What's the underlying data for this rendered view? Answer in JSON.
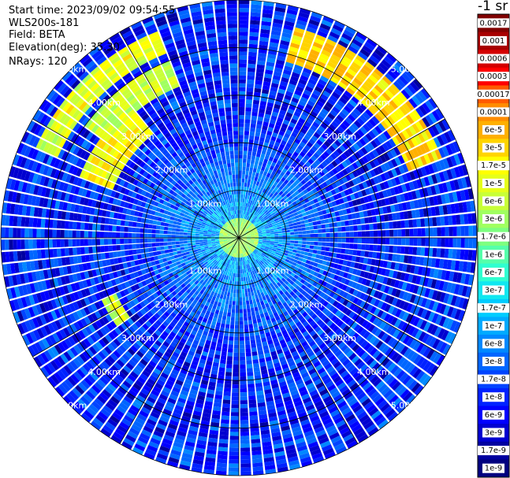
{
  "header": {
    "start_time": "Start time: 2023/09/02 09:54:55",
    "instrument": "WLS200s-181",
    "field": "Field: BETA",
    "elevation": "Elevation(deg): 35.30",
    "nrays": "NRays: 120"
  },
  "colorbar": {
    "title": "-1 sr",
    "ticks": [
      "0.0017",
      "0.001",
      "0.0006",
      "0.0003",
      "0.00017",
      "0.0001",
      "6e-5",
      "3e-5",
      "1.7e-5",
      "1e-5",
      "6e-6",
      "3e-6",
      "1.7e-6",
      "1e-6",
      "6e-7",
      "3e-7",
      "1.7e-7",
      "1e-7",
      "6e-8",
      "3e-8",
      "1.7e-8",
      "1e-8",
      "6e-9",
      "3e-9",
      "1.7e-9",
      "1e-9"
    ],
    "colors": [
      "#800000",
      "#a80000",
      "#d40000",
      "#ff0000",
      "#ff5a00",
      "#ff8c00",
      "#ffb000",
      "#ffd400",
      "#ffff00",
      "#e6ff1a",
      "#c8ff38",
      "#a0ff60",
      "#7dff80",
      "#55ffaa",
      "#30ffd0",
      "#10e8f0",
      "#00ccff",
      "#00aaff",
      "#0088ff",
      "#0066ff",
      "#0044ff",
      "#0022ff",
      "#0000ff",
      "#0000d0",
      "#0000a0",
      "#000080"
    ]
  },
  "chart_data": {
    "type": "heatmap",
    "projection": "polar PPI",
    "field": "BETA",
    "units": "sr-1",
    "elevation_deg": 35.3,
    "n_rays": 120,
    "range_unit": "km",
    "range_max_km": 5.0,
    "range_rings_km": [
      1.0,
      2.0,
      3.0,
      4.0,
      5.0
    ],
    "range_labels": [
      "1.00km",
      "2.00km",
      "3.00km",
      "4.00km",
      "5.00km"
    ],
    "spokes_deg": [
      0,
      30,
      60,
      90,
      120,
      150,
      180,
      210,
      240,
      270,
      300,
      330
    ],
    "near_field_km": [
      0,
      2.5
    ],
    "near_field_value": 1.7e-07,
    "background_value": 1e-08,
    "features": [
      {
        "range_km": [
          4.2,
          4.7
        ],
        "azimuth_deg": [
          295,
          340
        ],
        "value": 1e-05
      },
      {
        "range_km": [
          3.8,
          4.6
        ],
        "azimuth_deg": [
          15,
          70
        ],
        "value": 3e-05
      },
      {
        "range_km": [
          3.4,
          4.0
        ],
        "azimuth_deg": [
          305,
          340
        ],
        "value": 6e-06
      },
      {
        "range_km": [
          2.8,
          3.6
        ],
        "azimuth_deg": [
          290,
          320
        ],
        "value": 1.7e-05
      },
      {
        "range_km": [
          2.8,
          3.2
        ],
        "azimuth_deg": [
          235,
          245
        ],
        "value": 6e-06
      },
      {
        "range_km": [
          0.0,
          0.4
        ],
        "azimuth_deg": [
          0,
          360
        ],
        "value": 3e-06
      }
    ]
  }
}
